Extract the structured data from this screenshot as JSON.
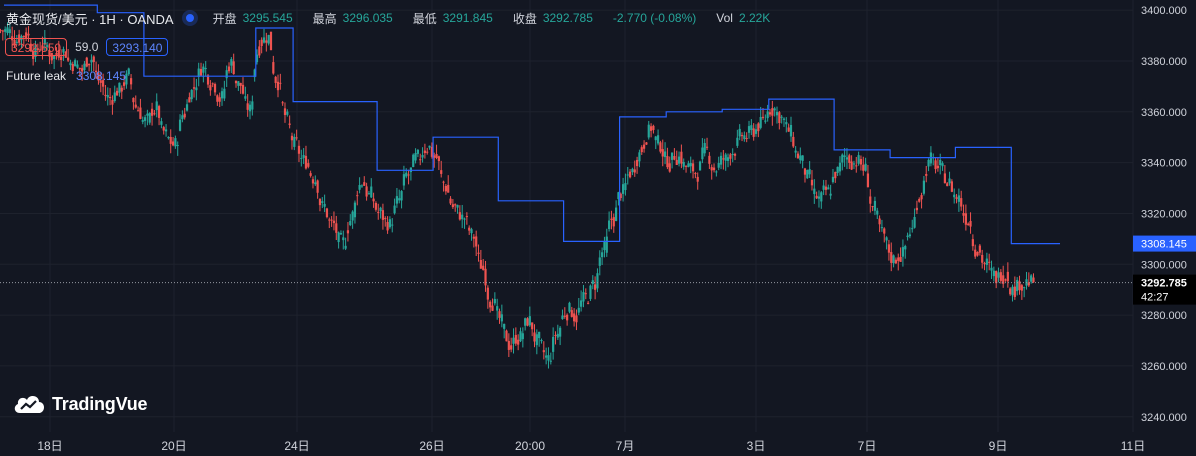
{
  "legend": {
    "symbol": "黄金现货/美元 · 1H · OANDA",
    "open_label": "开盘",
    "open_value": "3295.545",
    "high_label": "最高",
    "high_value": "3296.035",
    "low_label": "最低",
    "low_value": "3291.845",
    "close_label": "收盘",
    "close_value": "3292.785",
    "change": "-2.770 (-0.08%)",
    "vol_label": "Vol",
    "vol_value": "2.22K"
  },
  "row2": {
    "bid": "3292.550",
    "spread": "59.0",
    "ask": "3293.140"
  },
  "indicator": {
    "name": "Future leak",
    "value": "3308.145"
  },
  "price_labels": {
    "indicator": "3308.145",
    "last": "3292.785",
    "countdown": "42:27"
  },
  "logo": {
    "text": "TradingVue"
  },
  "colors": {
    "background": "#131722",
    "up": "#26a69a",
    "down": "#ef5350",
    "indicator_line": "#2962ff",
    "grid": "#1e222d",
    "text": "#d1d4dc"
  },
  "chart_data": {
    "type": "candlestick",
    "y_axis": {
      "ylim": [
        3234,
        3404
      ],
      "ticks": [
        "3400.000",
        "3380.000",
        "3360.000",
        "3340.000",
        "3320.000",
        "3300.000",
        "3280.000",
        "3260.000",
        "3240.000"
      ],
      "tick_values": [
        3400,
        3380,
        3360,
        3340,
        3320,
        3300,
        3280,
        3260,
        3240
      ]
    },
    "x_axis": {
      "ticks": [
        "18日",
        "20日",
        "24日",
        "26日",
        "20:00",
        "7月",
        "3日",
        "7日",
        "9日",
        "11日"
      ]
    },
    "candles_close_path": [
      3392,
      3389,
      3391,
      3384,
      3387,
      3382,
      3385,
      3379,
      3376,
      3382,
      3371,
      3365,
      3369,
      3374,
      3361,
      3356,
      3362,
      3350,
      3347,
      3360,
      3370,
      3378,
      3372,
      3366,
      3380,
      3370,
      3360,
      3387,
      3390,
      3372,
      3356,
      3346,
      3340,
      3334,
      3322,
      3315,
      3307,
      3320,
      3333,
      3327,
      3320,
      3316,
      3325,
      3335,
      3341,
      3347,
      3342,
      3330,
      3322,
      3318,
      3310,
      3298,
      3286,
      3276,
      3268,
      3272,
      3278,
      3269,
      3262,
      3273,
      3282,
      3280,
      3286,
      3292,
      3306,
      3318,
      3329,
      3337,
      3346,
      3354,
      3346,
      3340,
      3343,
      3338,
      3336,
      3344,
      3338,
      3341,
      3346,
      3350,
      3352,
      3356,
      3362,
      3358,
      3351,
      3342,
      3333,
      3325,
      3328,
      3337,
      3342,
      3341,
      3337,
      3321,
      3310,
      3302,
      3305,
      3314,
      3329,
      3341,
      3338,
      3332,
      3326,
      3318,
      3306,
      3300,
      3294,
      3297,
      3290,
      3293,
      3292.785
    ],
    "future_leak_steps": [
      {
        "x_from": 0,
        "x_to": 10,
        "y": 3402
      },
      {
        "x_from": 10,
        "x_to": 15,
        "y": 3399
      },
      {
        "x_from": 15,
        "x_to": 27,
        "y": 3374
      },
      {
        "x_from": 27,
        "x_to": 31,
        "y": 3393
      },
      {
        "x_from": 31,
        "x_to": 40,
        "y": 3364
      },
      {
        "x_from": 40,
        "x_to": 46,
        "y": 3337
      },
      {
        "x_from": 46,
        "x_to": 53,
        "y": 3350
      },
      {
        "x_from": 53,
        "x_to": 60,
        "y": 3325
      },
      {
        "x_from": 60,
        "x_to": 66,
        "y": 3309
      },
      {
        "x_from": 66,
        "x_to": 71,
        "y": 3358
      },
      {
        "x_from": 71,
        "x_to": 77,
        "y": 3360
      },
      {
        "x_from": 77,
        "x_to": 82,
        "y": 3361
      },
      {
        "x_from": 82,
        "x_to": 89,
        "y": 3365
      },
      {
        "x_from": 89,
        "x_to": 95,
        "y": 3345
      },
      {
        "x_from": 95,
        "x_to": 102,
        "y": 3342
      },
      {
        "x_from": 102,
        "x_to": 108,
        "y": 3346
      },
      {
        "x_from": 108,
        "x_to": 112,
        "y": 3308.145
      }
    ]
  }
}
